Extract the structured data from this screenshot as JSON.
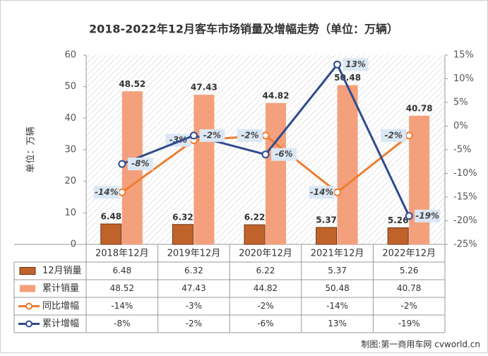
{
  "chart_data": {
    "type": "bar",
    "title": "2018-2022年12月客车市场销量及增幅走势（单位：万辆）",
    "y_label": "单位：万辆",
    "categories": [
      "2018年12月",
      "2019年12月",
      "2020年12月",
      "2021年12月",
      "2022年12月"
    ],
    "ylim": [
      0,
      60
    ],
    "yticks": [
      0,
      10,
      20,
      30,
      40,
      50,
      60
    ],
    "y2lim": [
      -25,
      15
    ],
    "y2ticks": [
      {
        "value": -25,
        "label": "-25%"
      },
      {
        "value": -20,
        "label": "-20%"
      },
      {
        "value": -15,
        "label": "-15%"
      },
      {
        "value": -10,
        "label": "-10%"
      },
      {
        "value": -5,
        "label": "-5%"
      },
      {
        "value": 0,
        "label": "0%"
      },
      {
        "value": 5,
        "label": "5%"
      },
      {
        "value": 10,
        "label": "10%"
      },
      {
        "value": 15,
        "label": "15%"
      }
    ],
    "series": [
      {
        "name": "12月销量",
        "type": "bar",
        "color": "#c0632b",
        "values": [
          6.48,
          6.32,
          6.22,
          5.37,
          5.26
        ]
      },
      {
        "name": "累计销量",
        "type": "bar",
        "color": "#f4a07c",
        "values": [
          48.52,
          47.43,
          44.82,
          50.48,
          40.78
        ]
      },
      {
        "name": "同比增幅",
        "type": "line",
        "axis": "y2",
        "color": "#ed7d31",
        "values": [
          -14,
          -3,
          -2,
          -14,
          -2
        ],
        "value_labels": [
          "-14%",
          "-3%",
          "-2%",
          "-14%",
          "-2%"
        ]
      },
      {
        "name": "累计增幅",
        "type": "line",
        "axis": "y2",
        "color": "#2f4b8f",
        "values": [
          -8,
          -2,
          -6,
          13,
          -19
        ],
        "value_labels": [
          "-8%",
          "-2%",
          "-6%",
          "13%",
          "-19%"
        ]
      }
    ],
    "credit": "制图:第一商用车网 cvworld.cn"
  }
}
